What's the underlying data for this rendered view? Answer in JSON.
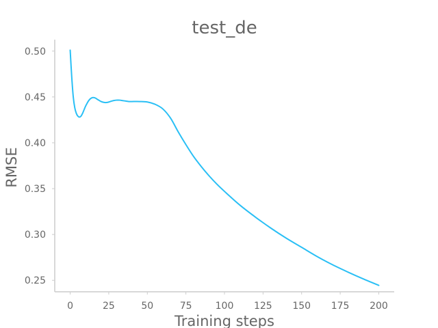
{
  "chart_data": {
    "type": "line",
    "title": "test_de",
    "xlabel": "Training steps",
    "ylabel": "RMSE",
    "xlim": [
      -10,
      210
    ],
    "ylim": [
      0.2375,
      0.5125
    ],
    "xticks": [
      0,
      25,
      50,
      75,
      100,
      125,
      150,
      175,
      200
    ],
    "xtick_labels": [
      "0",
      "25",
      "50",
      "75",
      "100",
      "125",
      "150",
      "175",
      "200"
    ],
    "yticks": [
      0.25,
      0.3,
      0.35,
      0.4,
      0.45,
      0.5
    ],
    "ytick_labels": [
      "0.25",
      "0.30",
      "0.35",
      "0.40",
      "0.45",
      "0.50"
    ],
    "grid": false,
    "series": [
      {
        "color": "#29bff5",
        "x": [
          0,
          1,
          2,
          3,
          4,
          5,
          6,
          7,
          8,
          9,
          10,
          12,
          14,
          16,
          18,
          20,
          22,
          24,
          26,
          28,
          30,
          32,
          34,
          36,
          38,
          40,
          45,
          50,
          55,
          60,
          65,
          70,
          75,
          80,
          85,
          90,
          95,
          100,
          110,
          120,
          130,
          140,
          150,
          160,
          170,
          180,
          190,
          200
        ],
        "y": [
          0.501,
          0.472,
          0.45,
          0.438,
          0.432,
          0.429,
          0.428,
          0.429,
          0.432,
          0.436,
          0.44,
          0.446,
          0.449,
          0.449,
          0.447,
          0.445,
          0.444,
          0.444,
          0.445,
          0.446,
          0.4465,
          0.4465,
          0.446,
          0.4455,
          0.445,
          0.445,
          0.445,
          0.4445,
          0.442,
          0.437,
          0.427,
          0.412,
          0.398,
          0.385,
          0.374,
          0.364,
          0.355,
          0.347,
          0.332,
          0.319,
          0.307,
          0.296,
          0.286,
          0.276,
          0.267,
          0.259,
          0.2515,
          0.2445
        ]
      }
    ]
  }
}
